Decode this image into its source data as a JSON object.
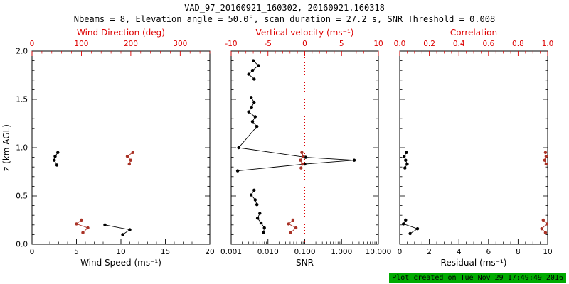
{
  "header": {
    "title": "VAD_97_20160921_160302, 20160921.160318",
    "subtitle": "Nbeams = 8, Elevation angle = 50.0°, scan duration = 27.2 s, SNR Threshold = 0.008"
  },
  "footer": {
    "text": "Plot created on Tue Nov 29 17:49:49 2016",
    "bg_color": "#00ab00",
    "text_color": "#000000"
  },
  "colors": {
    "axis_black": "#000000",
    "axis_red": "#dd0000",
    "data_black": "#000000",
    "data_red": "#a93226"
  },
  "chart_data": {
    "type": "scatter",
    "title": "VAD_97_20160921_160302, 20160921.160318",
    "subtitle": "Nbeams = 8, Elevation angle = 50.0°, scan duration = 27.2 s, SNR Threshold = 0.008",
    "ylabel": "z (km AGL)",
    "ylim": [
      0,
      2
    ],
    "yticks": {
      "values": [
        0,
        0.5,
        1.0,
        1.5,
        2.0
      ],
      "labels": [
        "0.0",
        "0.5",
        "1.0",
        "1.5",
        "2.0"
      ],
      "minor_step": 0.1
    },
    "panels": [
      {
        "name": "wind",
        "bottom": {
          "label": "Wind Speed (ms⁻¹)",
          "scale": "linear",
          "range": [
            0,
            20
          ],
          "tick_values": [
            0,
            5,
            10,
            15,
            20
          ],
          "tick_labels": [
            "0",
            "5",
            "10",
            "15",
            "20"
          ],
          "minor_step": 1,
          "color": "#000000"
        },
        "top": {
          "label": "Wind Direction (deg)",
          "scale": "linear",
          "range": [
            0,
            360
          ],
          "tick_values": [
            0,
            100,
            200,
            300
          ],
          "tick_labels": [
            "0",
            "100",
            "200",
            "300"
          ],
          "minor_step": 20,
          "color": "#dd0000"
        },
        "series": [
          {
            "name": "wind-speed",
            "axis": "bottom",
            "color": "#000000",
            "segments": [
              [
                [
                  2.9,
                  0.95
                ],
                [
                  2.6,
                  0.91
                ],
                [
                  2.5,
                  0.87
                ],
                [
                  2.8,
                  0.82
                ]
              ],
              [
                [
                  8.2,
                  0.2
                ],
                [
                  11.0,
                  0.15
                ],
                [
                  10.2,
                  0.1
                ]
              ]
            ]
          },
          {
            "name": "wind-direction",
            "axis": "top",
            "color": "#a93226",
            "segments": [
              [
                [
                  204,
                  0.95
                ],
                [
                  193,
                  0.91
                ],
                [
                  200,
                  0.87
                ],
                [
                  197,
                  0.83
                ]
              ],
              [
                [
                  100,
                  0.25
                ],
                [
                  90,
                  0.21
                ],
                [
                  113,
                  0.17
                ],
                [
                  103,
                  0.12
                ]
              ]
            ]
          }
        ]
      },
      {
        "name": "snr",
        "bottom": {
          "label": "SNR",
          "scale": "log",
          "range": [
            0.001,
            10
          ],
          "tick_values": [
            0.001,
            0.01,
            0.1,
            1,
            10
          ],
          "tick_labels": [
            "0.001",
            "0.010",
            "0.100",
            "1.000",
            "10.000"
          ],
          "color": "#000000"
        },
        "top": {
          "label": "Vertical velocity (ms⁻¹)",
          "scale": "linear",
          "range": [
            -10,
            10
          ],
          "tick_values": [
            -10,
            -5,
            0,
            5,
            10
          ],
          "tick_labels": [
            "-10",
            "-5",
            "0",
            "5",
            "10"
          ],
          "minor_step": 1,
          "color": "#dd0000"
        },
        "vline": {
          "axis": "top",
          "value": 0,
          "color": "#dd0000",
          "style": "dotted"
        },
        "series": [
          {
            "name": "snr",
            "axis": "bottom",
            "color": "#000000",
            "segments": [
              [
                [
                  0.004,
                  1.9
                ],
                [
                  0.0055,
                  1.85
                ],
                [
                  0.0038,
                  1.8
                ],
                [
                  0.003,
                  1.76
                ],
                [
                  0.0042,
                  1.71
                ]
              ],
              [
                [
                  0.0035,
                  1.52
                ],
                [
                  0.0042,
                  1.47
                ],
                [
                  0.0036,
                  1.42
                ],
                [
                  0.003,
                  1.37
                ],
                [
                  0.0045,
                  1.32
                ],
                [
                  0.0038,
                  1.27
                ],
                [
                  0.005,
                  1.22
                ],
                [
                  0.0016,
                  1.0
                ],
                [
                  0.105,
                  0.9
                ],
                [
                  2.2,
                  0.87
                ],
                [
                  0.1,
                  0.83
                ],
                [
                  0.0015,
                  0.76
                ]
              ],
              [
                [
                  0.0042,
                  0.56
                ],
                [
                  0.0035,
                  0.51
                ],
                [
                  0.0045,
                  0.46
                ],
                [
                  0.005,
                  0.41
                ]
              ],
              [
                [
                  0.006,
                  0.32
                ],
                [
                  0.0052,
                  0.27
                ],
                [
                  0.0065,
                  0.22
                ],
                [
                  0.008,
                  0.17
                ],
                [
                  0.0075,
                  0.12
                ]
              ]
            ]
          },
          {
            "name": "vertical-velocity",
            "axis": "top",
            "color": "#a93226",
            "segments": [
              [
                [
                  -0.4,
                  0.95
                ],
                [
                  -0.2,
                  0.91
                ],
                [
                  -0.6,
                  0.87
                ],
                [
                  -0.3,
                  0.83
                ],
                [
                  -0.5,
                  0.79
                ]
              ],
              [
                [
                  -1.6,
                  0.25
                ],
                [
                  -2.2,
                  0.21
                ],
                [
                  -1.2,
                  0.17
                ],
                [
                  -1.9,
                  0.12
                ]
              ]
            ]
          }
        ]
      },
      {
        "name": "residual",
        "bottom": {
          "label": "Residual (ms⁻¹)",
          "scale": "linear",
          "range": [
            0,
            10
          ],
          "tick_values": [
            0,
            2,
            4,
            6,
            8,
            10
          ],
          "tick_labels": [
            "0",
            "2",
            "4",
            "6",
            "8",
            "10"
          ],
          "minor_step": 0.5,
          "color": "#000000"
        },
        "top": {
          "label": "Correlation",
          "scale": "linear",
          "range": [
            0,
            1
          ],
          "tick_values": [
            0,
            0.2,
            0.4,
            0.6,
            0.8,
            1.0
          ],
          "tick_labels": [
            "0.0",
            "0.2",
            "0.4",
            "0.6",
            "0.8",
            "1.0"
          ],
          "minor_step": 0.05,
          "color": "#dd0000"
        },
        "series": [
          {
            "name": "residual",
            "axis": "bottom",
            "color": "#000000",
            "segments": [
              [
                [
                  0.45,
                  0.95
                ],
                [
                  0.3,
                  0.91
                ],
                [
                  0.4,
                  0.87
                ],
                [
                  0.5,
                  0.83
                ],
                [
                  0.35,
                  0.79
                ]
              ],
              [
                [
                  0.4,
                  0.25
                ],
                [
                  0.25,
                  0.21
                ],
                [
                  1.2,
                  0.16
                ],
                [
                  0.7,
                  0.11
                ]
              ]
            ]
          },
          {
            "name": "correlation",
            "axis": "top",
            "color": "#a93226",
            "segments": [
              [
                [
                  0.985,
                  0.95
                ],
                [
                  0.99,
                  0.91
                ],
                [
                  0.98,
                  0.87
                ],
                [
                  0.99,
                  0.83
                ]
              ],
              [
                [
                  0.97,
                  0.25
                ],
                [
                  0.995,
                  0.21
                ],
                [
                  0.96,
                  0.16
                ],
                [
                  0.985,
                  0.12
                ]
              ]
            ]
          }
        ]
      }
    ]
  }
}
